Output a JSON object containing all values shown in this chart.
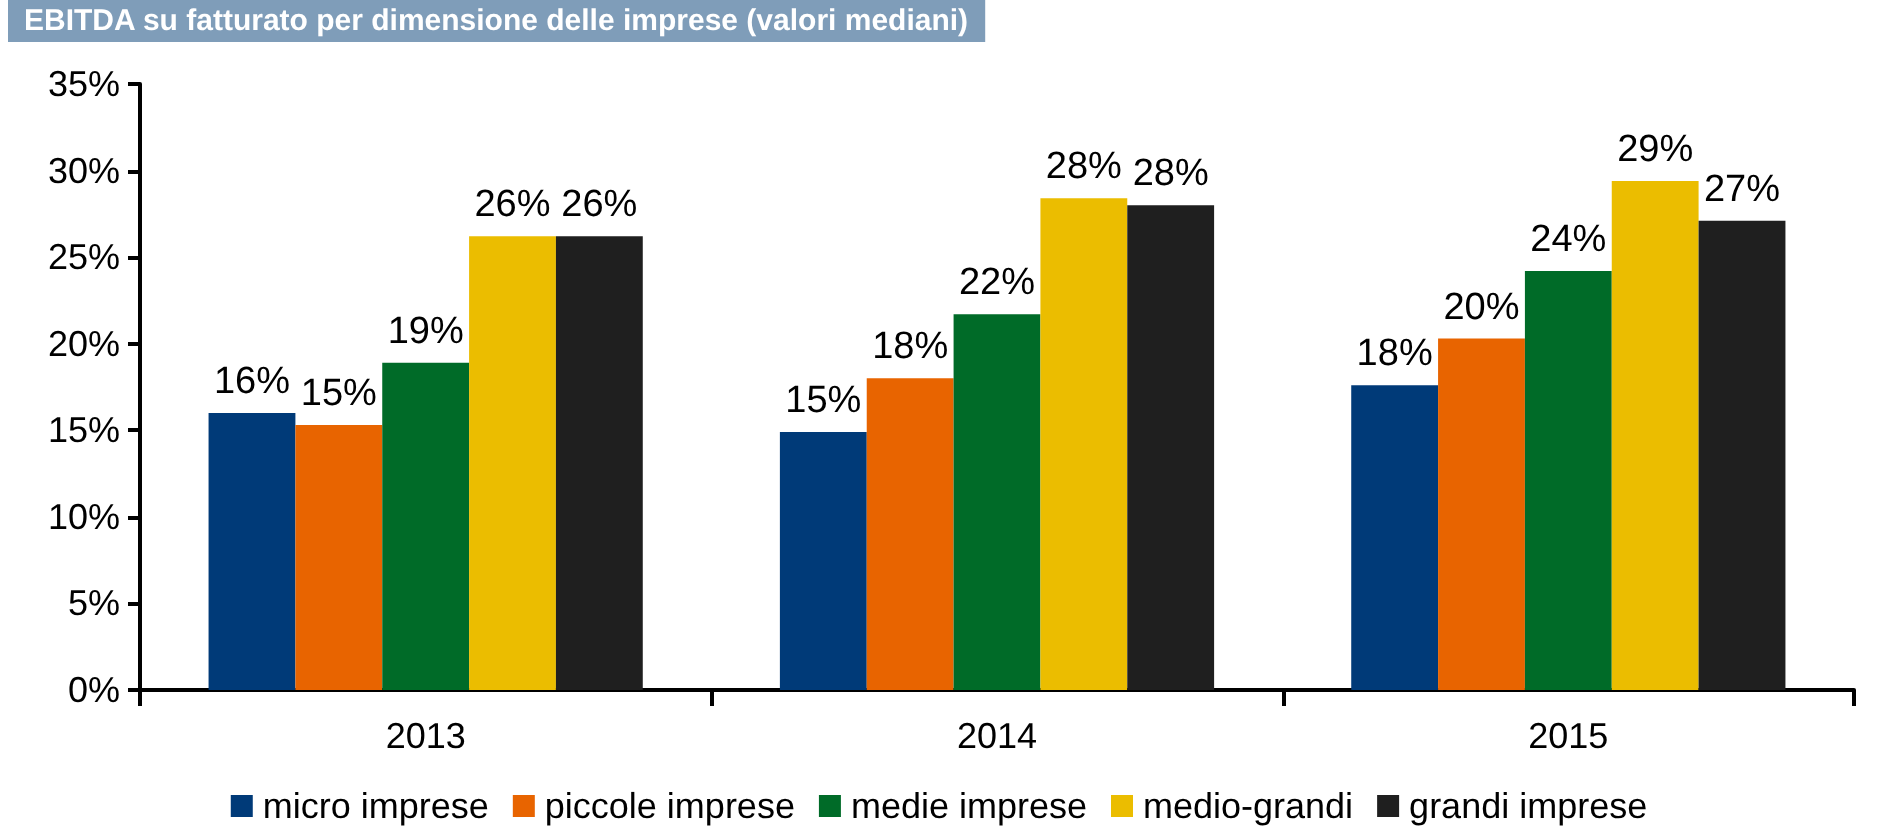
{
  "chart_data": {
    "type": "bar",
    "title": "EBITDA su fatturato per dimensione delle imprese (valori mediani)",
    "categories": [
      "2013",
      "2014",
      "2015"
    ],
    "series": [
      {
        "name": "micro imprese",
        "color": "#003a78",
        "values": [
          16.0,
          14.9,
          17.6
        ],
        "value_labels": [
          "16%",
          "15%",
          "18%"
        ]
      },
      {
        "name": "piccole imprese",
        "color": "#e86400",
        "values": [
          15.3,
          18.0,
          20.3
        ],
        "value_labels": [
          "15%",
          "18%",
          "20%"
        ]
      },
      {
        "name": "medie imprese",
        "color": "#006b28",
        "values": [
          18.9,
          21.7,
          24.2
        ],
        "value_labels": [
          "19%",
          "22%",
          "24%"
        ]
      },
      {
        "name": "medio-grandi",
        "color": "#ebbd00",
        "values": [
          26.2,
          28.4,
          29.4
        ],
        "value_labels": [
          "26%",
          "28%",
          "29%"
        ]
      },
      {
        "name": "grandi imprese",
        "color": "#1f1f1f",
        "values": [
          26.2,
          28.0,
          27.1
        ],
        "value_labels": [
          "26%",
          "28%",
          "27%"
        ]
      }
    ],
    "ylim": [
      0,
      35
    ],
    "yticks": [
      {
        "value": 0,
        "label": "0%"
      },
      {
        "value": 5,
        "label": "5%"
      },
      {
        "value": 10,
        "label": "10%"
      },
      {
        "value": 15,
        "label": "15%"
      },
      {
        "value": 20,
        "label": "20%"
      },
      {
        "value": 25,
        "label": "25%"
      },
      {
        "value": 30,
        "label": "30%"
      },
      {
        "value": 35,
        "label": "35%"
      }
    ],
    "grid": false,
    "legend": "bottom"
  }
}
